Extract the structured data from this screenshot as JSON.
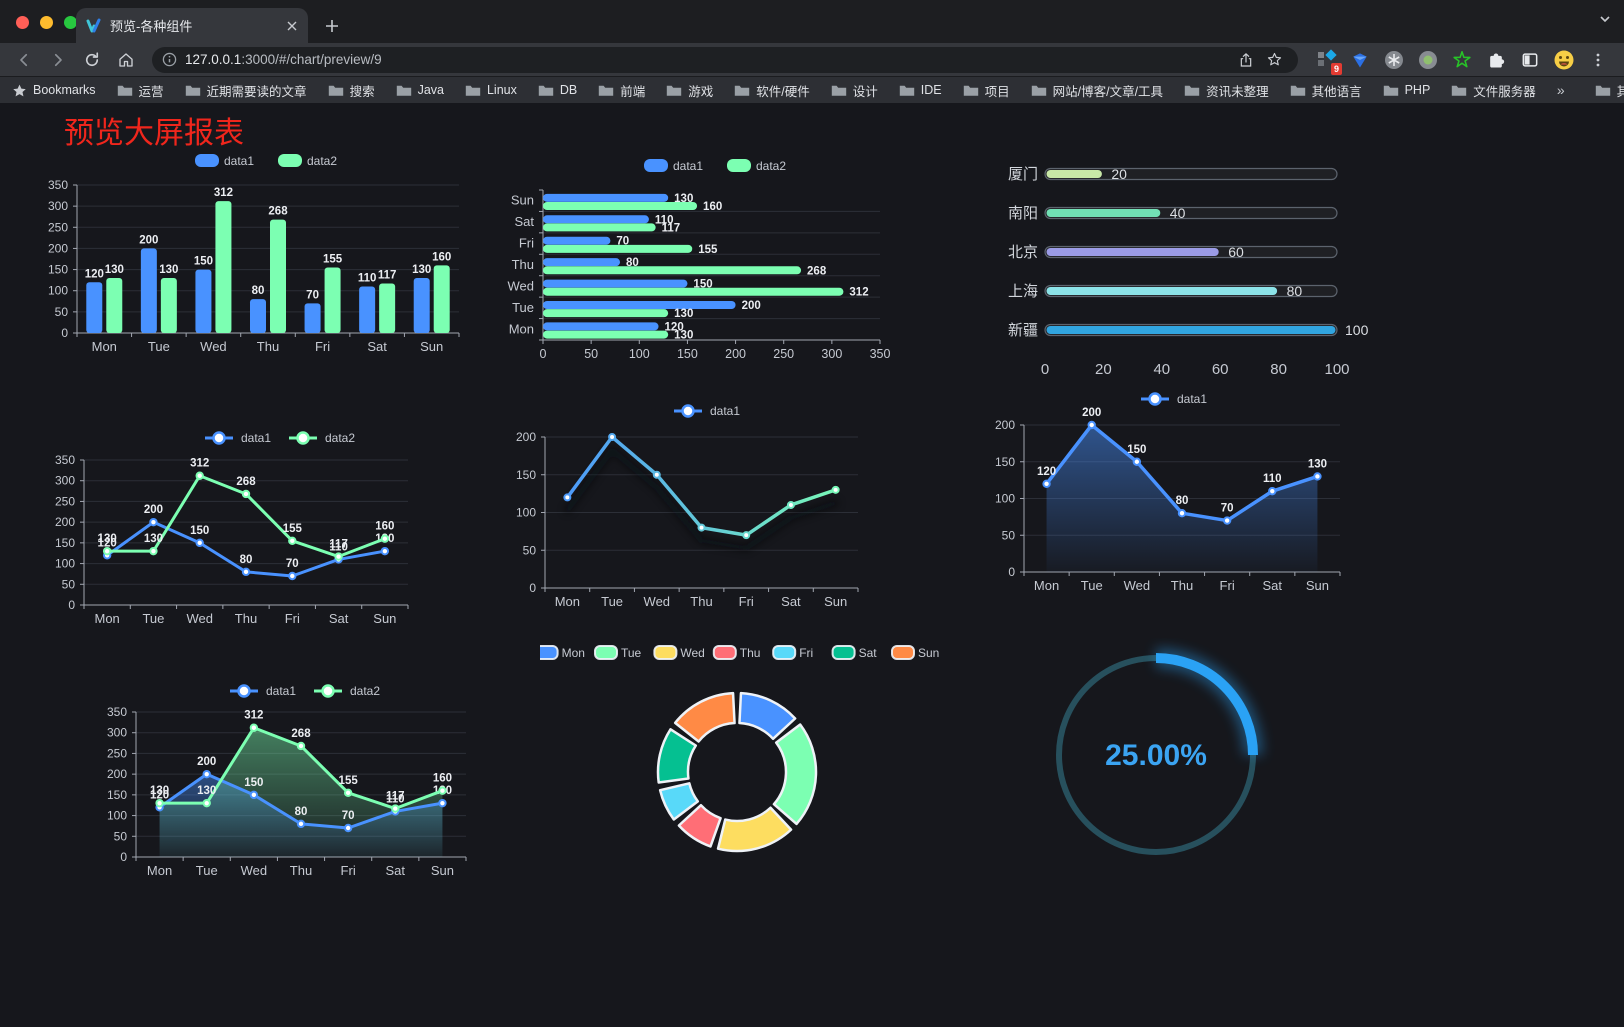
{
  "browser": {
    "tab_title": "预览-各种组件",
    "url_host": "127.0.0.1",
    "url_rest": ":3000/#/chart/preview/9",
    "bookmarks_label": "Bookmarks",
    "bookmark_folders": [
      "运营",
      "近期需要读的文章",
      "搜索",
      "Java",
      "Linux",
      "DB",
      "前端",
      "游戏",
      "软件/硬件",
      "设计",
      "IDE",
      "项目",
      "网站/博客/文章/工具",
      "资讯未整理",
      "其他语言",
      "PHP",
      "文件服务器"
    ],
    "bookmarks_overflow": "»",
    "other_bookmarks_label": "其他书签",
    "extension_badge_count": "9"
  },
  "page": {
    "title": "预览大屏报表",
    "title_color": "#f0261c"
  },
  "chart_data": [
    {
      "id": "bar-grouped",
      "type": "bar",
      "categories": [
        "Mon",
        "Tue",
        "Wed",
        "Thu",
        "Fri",
        "Sat",
        "Sun"
      ],
      "series": [
        {
          "name": "data1",
          "color": "#4992ff",
          "values": [
            120,
            200,
            150,
            80,
            70,
            110,
            130
          ]
        },
        {
          "name": "data2",
          "color": "#7cffb2",
          "values": [
            130,
            130,
            312,
            268,
            155,
            117,
            160
          ]
        }
      ],
      "ylim": [
        0,
        350
      ],
      "ytick": 50,
      "legend_position": "top",
      "grid": true,
      "labels": true
    },
    {
      "id": "bar-horizontal",
      "type": "bar",
      "orientation": "horizontal",
      "categories": [
        "Mon",
        "Tue",
        "Wed",
        "Thu",
        "Fri",
        "Sat",
        "Sun"
      ],
      "categories_display_top_to_bottom": [
        "Sun",
        "Sat",
        "Fri",
        "Thu",
        "Wed",
        "Tue",
        "Mon"
      ],
      "series": [
        {
          "name": "data1",
          "color": "#4992ff",
          "values": [
            120,
            200,
            150,
            80,
            70,
            110,
            130
          ]
        },
        {
          "name": "data2",
          "color": "#7cffb2",
          "values": [
            130,
            130,
            312,
            268,
            155,
            117,
            160
          ]
        }
      ],
      "xlim": [
        0,
        350
      ],
      "xtick": 50,
      "legend_position": "top",
      "labels": true
    },
    {
      "id": "progress-bars",
      "type": "bar",
      "orientation": "horizontal",
      "items": [
        {
          "label": "厦门",
          "value": 20,
          "color": "#c8e8a7"
        },
        {
          "label": "南阳",
          "value": 40,
          "color": "#71e0b5"
        },
        {
          "label": "北京",
          "value": 60,
          "color": "#9b9be6"
        },
        {
          "label": "上海",
          "value": 80,
          "color": "#8ce3e8"
        },
        {
          "label": "新疆",
          "value": 100,
          "color": "#31a5e0"
        }
      ],
      "xlim": [
        0,
        100
      ],
      "xticks": [
        0,
        20,
        40,
        60,
        80,
        100
      ],
      "labels": true
    },
    {
      "id": "line-dual",
      "type": "line",
      "categories": [
        "Mon",
        "Tue",
        "Wed",
        "Thu",
        "Fri",
        "Sat",
        "Sun"
      ],
      "series": [
        {
          "name": "data1",
          "color": "#4992ff",
          "values": [
            120,
            200,
            150,
            80,
            70,
            110,
            130
          ]
        },
        {
          "name": "data2",
          "color": "#7cffb2",
          "values": [
            130,
            130,
            312,
            268,
            155,
            117,
            160
          ]
        }
      ],
      "ylim": [
        0,
        350
      ],
      "ytick": 50,
      "legend_position": "top",
      "labels": true
    },
    {
      "id": "line-gradient",
      "type": "line",
      "categories": [
        "Mon",
        "Tue",
        "Wed",
        "Thu",
        "Fri",
        "Sat",
        "Sun"
      ],
      "series": [
        {
          "name": "data1",
          "gradient": [
            "#4992ff",
            "#7cffb2"
          ],
          "values": [
            120,
            200,
            150,
            80,
            70,
            110,
            130
          ]
        }
      ],
      "ylim": [
        0,
        200
      ],
      "ytick": 50,
      "legend_position": "top",
      "labels": false,
      "shadow": true
    },
    {
      "id": "line-area",
      "type": "area",
      "categories": [
        "Mon",
        "Tue",
        "Wed",
        "Thu",
        "Fri",
        "Sat",
        "Sun"
      ],
      "series": [
        {
          "name": "data1",
          "color": "#4992ff",
          "values": [
            120,
            200,
            150,
            80,
            70,
            110,
            130
          ]
        }
      ],
      "ylim": [
        0,
        200
      ],
      "ytick": 50,
      "legend_position": "top",
      "labels": true
    },
    {
      "id": "line-area-dual",
      "type": "area",
      "categories": [
        "Mon",
        "Tue",
        "Wed",
        "Thu",
        "Fri",
        "Sat",
        "Sun"
      ],
      "series": [
        {
          "name": "data1",
          "color": "#4992ff",
          "values": [
            120,
            200,
            150,
            80,
            70,
            110,
            130
          ]
        },
        {
          "name": "data2",
          "color": "#7cffb2",
          "values": [
            130,
            130,
            312,
            268,
            155,
            117,
            160
          ]
        }
      ],
      "ylim": [
        0,
        350
      ],
      "ytick": 50,
      "legend_position": "top",
      "labels": true
    },
    {
      "id": "donut",
      "type": "pie",
      "categories": [
        "Mon",
        "Tue",
        "Wed",
        "Thu",
        "Fri",
        "Sat",
        "Sun"
      ],
      "values": [
        120,
        200,
        150,
        80,
        70,
        110,
        130
      ],
      "colors": [
        "#4992ff",
        "#7cffb2",
        "#fddd60",
        "#ff6e76",
        "#58d9f9",
        "#05c091",
        "#ff8a45"
      ],
      "legend_position": "top",
      "inner_radius_ratio": 0.62
    },
    {
      "id": "gauge",
      "type": "gauge",
      "value": 25,
      "label": "25.00%",
      "color": "#2aa2f5",
      "track_color": "#27505d",
      "text_color": "#3ba4f2"
    }
  ]
}
